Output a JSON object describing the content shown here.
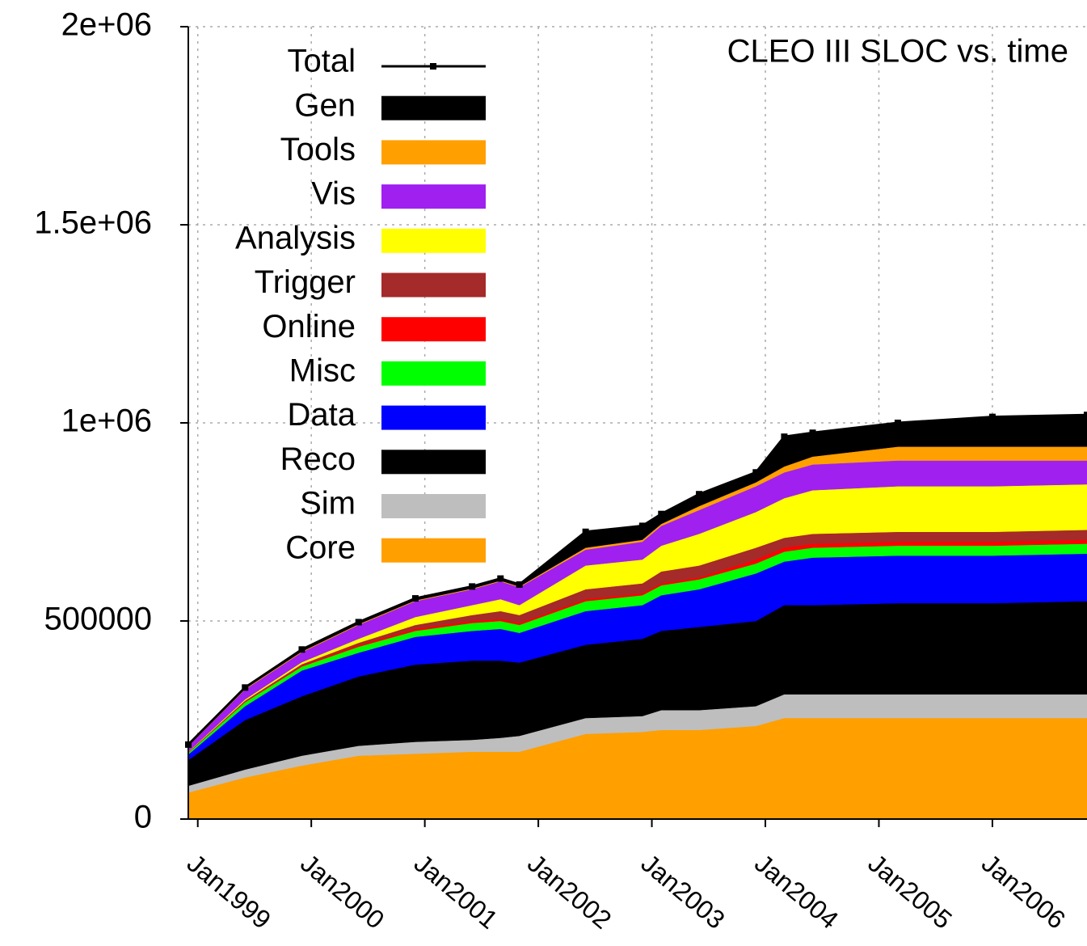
{
  "chart_data": {
    "type": "stacked-area",
    "title": "CLEO III SLOC vs. time",
    "x": [
      "1998-12",
      "1999-06",
      "1999-12",
      "2000-06",
      "2000-12",
      "2001-06",
      "2001-09",
      "2001-11",
      "2002-06",
      "2002-12",
      "2003-02",
      "2003-06",
      "2003-12",
      "2004-03",
      "2004-06",
      "2005-03",
      "2006-01",
      "2006-11"
    ],
    "xlim": [
      "1998-12",
      "2006-11"
    ],
    "xticks": [
      {
        "value": "1999-01",
        "label": "Jan1999"
      },
      {
        "value": "2000-01",
        "label": "Jan2000"
      },
      {
        "value": "2001-01",
        "label": "Jan2001"
      },
      {
        "value": "2002-01",
        "label": "Jan2002"
      },
      {
        "value": "2003-01",
        "label": "Jan2003"
      },
      {
        "value": "2004-01",
        "label": "Jan2004"
      },
      {
        "value": "2005-01",
        "label": "Jan2005"
      },
      {
        "value": "2006-01",
        "label": "Jan2006"
      }
    ],
    "ylim": [
      0,
      2000000
    ],
    "yticks": [
      0,
      500000,
      {
        "value": 1000000,
        "label": "1e+06"
      },
      {
        "value": 1500000,
        "label": "1.5e+06"
      },
      {
        "value": 2000000,
        "label": "2e+06"
      }
    ],
    "grid": true,
    "legend": "top-left",
    "series": [
      {
        "name": "Core",
        "color": "#ff9f00",
        "values": [
          67000,
          105000,
          135000,
          160000,
          165000,
          170000,
          170000,
          170000,
          215000,
          220000,
          225000,
          225000,
          235000,
          255000,
          255000,
          255000,
          255000,
          255000
        ]
      },
      {
        "name": "Sim",
        "color": "#bebebe",
        "values": [
          17000,
          20000,
          25000,
          25000,
          30000,
          30000,
          35000,
          40000,
          40000,
          40000,
          50000,
          50000,
          50000,
          60000,
          60000,
          60000,
          60000,
          60000
        ]
      },
      {
        "name": "Reco",
        "color": "#000000",
        "values": [
          65000,
          125000,
          150000,
          175000,
          195000,
          200000,
          195000,
          185000,
          185000,
          195000,
          200000,
          210000,
          215000,
          225000,
          225000,
          230000,
          230000,
          235000
        ]
      },
      {
        "name": "Data",
        "color": "#0000ff",
        "values": [
          14000,
          35000,
          65000,
          60000,
          70000,
          75000,
          80000,
          75000,
          85000,
          85000,
          90000,
          95000,
          120000,
          110000,
          120000,
          120000,
          120000,
          120000
        ]
      },
      {
        "name": "Misc",
        "color": "#00ff00",
        "values": [
          4000,
          10000,
          10000,
          15000,
          15000,
          20000,
          20000,
          20000,
          25000,
          25000,
          25000,
          25000,
          25000,
          25000,
          25000,
          25000,
          25000,
          25000
        ]
      },
      {
        "name": "Online",
        "color": "#ff0000",
        "values": [
          1000,
          2000,
          3000,
          4000,
          5000,
          5000,
          5000,
          5000,
          5000,
          5000,
          5000,
          5000,
          10000,
          10000,
          10000,
          10000,
          10000,
          10000
        ]
      },
      {
        "name": "Trigger",
        "color": "#a52a2a",
        "values": [
          1000,
          2000,
          3000,
          6000,
          10000,
          15000,
          20000,
          20000,
          25000,
          25000,
          30000,
          30000,
          30000,
          25000,
          25000,
          25000,
          25000,
          25000
        ]
      },
      {
        "name": "Analysis",
        "color": "#ffff00",
        "values": [
          1000,
          3000,
          5000,
          10000,
          20000,
          25000,
          30000,
          25000,
          60000,
          60000,
          65000,
          80000,
          90000,
          100000,
          110000,
          115000,
          115000,
          115000
        ]
      },
      {
        "name": "Vis",
        "color": "#a020f0",
        "values": [
          14000,
          25000,
          25000,
          35000,
          40000,
          40000,
          45000,
          45000,
          40000,
          45000,
          50000,
          60000,
          65000,
          65000,
          65000,
          65000,
          65000,
          60000
        ]
      },
      {
        "name": "Tools",
        "color": "#ff9f00",
        "values": [
          1000,
          2000,
          2000,
          2000,
          2000,
          2000,
          2000,
          2000,
          5000,
          5000,
          5000,
          10000,
          10000,
          15000,
          20000,
          35000,
          35000,
          35000
        ]
      },
      {
        "name": "Gen",
        "color": "#000000",
        "values": [
          3000,
          3000,
          5000,
          5000,
          5000,
          5000,
          5000,
          5000,
          40000,
          35000,
          25000,
          30000,
          25000,
          75000,
          60000,
          60000,
          75000,
          80000
        ]
      },
      {
        "name": "Total",
        "color": "#000000",
        "line": true,
        "values": [
          188000,
          332000,
          428000,
          497000,
          557000,
          587000,
          607000,
          592000,
          725000,
          740000,
          770000,
          820000,
          875000,
          965000,
          975000,
          1000000,
          1015000,
          1020000
        ]
      }
    ]
  }
}
